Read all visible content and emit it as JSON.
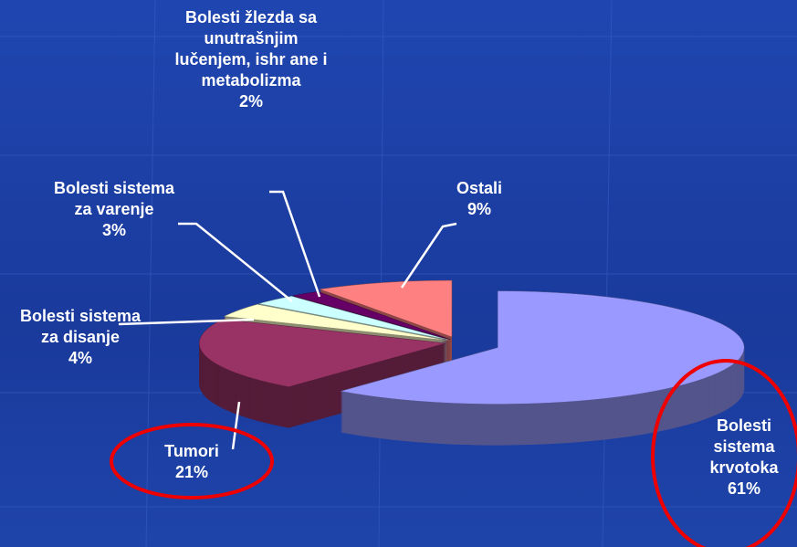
{
  "chart_data": {
    "type": "pie",
    "categories": [
      "Bolesti sistema krvotoka",
      "Tumori",
      "Bolesti sistema za disanje",
      "Bolesti sistema za varenje",
      "Bolesti žlezda sa unutrašnjim lučenjem, ishr ane i metabolizma",
      "Ostali"
    ],
    "values": [
      61,
      21,
      4,
      3,
      2,
      9
    ],
    "value_labels": [
      "61%",
      "21%",
      "4%",
      "3%",
      "2%",
      "9%"
    ],
    "colors": [
      "#9999ff",
      "#993366",
      "#ffffcc",
      "#ccffff",
      "#660066",
      "#ff8080"
    ]
  }
}
